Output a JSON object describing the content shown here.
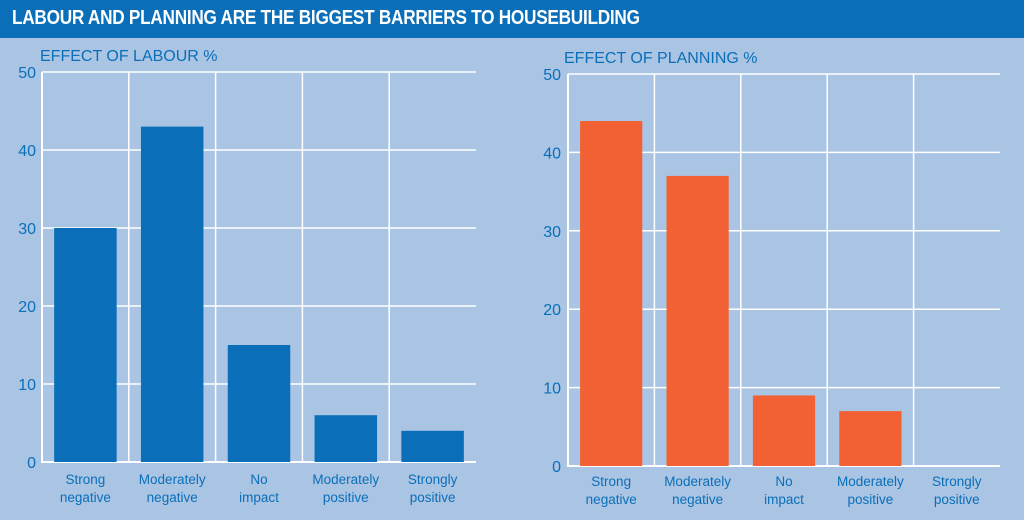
{
  "header": {
    "title": "LABOUR AND PLANNING ARE THE BIGGEST BARRIERS TO HOUSEBUILDING"
  },
  "chart_data": [
    {
      "type": "bar",
      "title": "EFFECT OF LABOUR %",
      "categories": [
        [
          "Strong",
          "negative"
        ],
        [
          "Moderately",
          "negative"
        ],
        [
          "No",
          "impact"
        ],
        [
          "Moderately",
          "positive"
        ],
        [
          "Strongly",
          "positive"
        ]
      ],
      "values": [
        30,
        43,
        15,
        6,
        4
      ],
      "ylim": [
        0,
        50
      ],
      "yticks": [
        0,
        10,
        20,
        30,
        40,
        50
      ],
      "color": "#0a6fb8",
      "grid": true
    },
    {
      "type": "bar",
      "title": "EFFECT OF PLANNING %",
      "categories": [
        [
          "Strong",
          "negative"
        ],
        [
          "Moderately",
          "negative"
        ],
        [
          "No",
          "impact"
        ],
        [
          "Moderately",
          "positive"
        ],
        [
          "Strongly",
          "positive"
        ]
      ],
      "values": [
        44,
        37,
        9,
        7,
        0
      ],
      "ylim": [
        0,
        50
      ],
      "yticks": [
        0,
        10,
        20,
        30,
        40,
        50
      ],
      "color": "#f26133",
      "grid": true
    }
  ]
}
